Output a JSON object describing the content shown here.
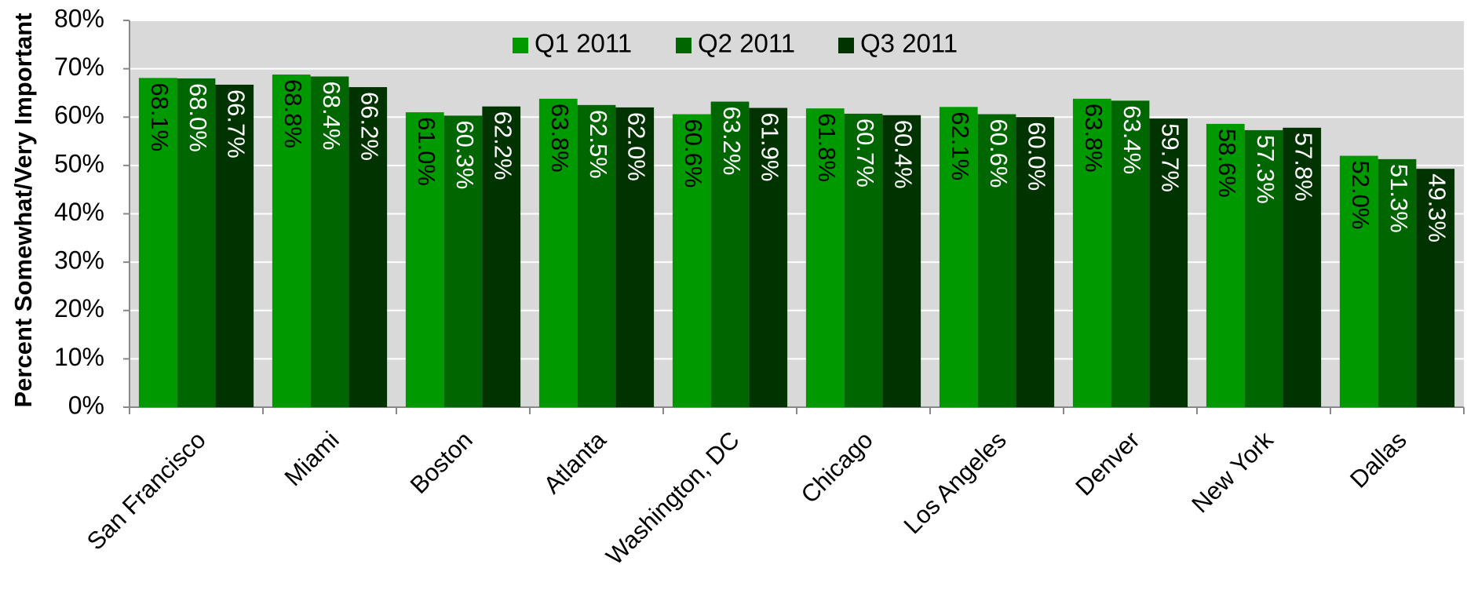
{
  "chart_data": {
    "type": "bar",
    "y_label": "Percent Somewhat/Very Important",
    "categories": [
      "San Francisco",
      "Miami",
      "Boston",
      "Atlanta",
      "Washington, DC",
      "Chicago",
      "Los Angeles",
      "Denver",
      "New York",
      "Dallas"
    ],
    "series": [
      {
        "name": "Q1 2011",
        "color": "#009900",
        "label_color": "#000000",
        "values": [
          68.1,
          68.8,
          61.0,
          63.8,
          60.6,
          61.8,
          62.1,
          63.8,
          58.6,
          52.0
        ],
        "value_labels": [
          "68.1%",
          "68.8%",
          "61.0%",
          "63.8%",
          "60.6%",
          "61.8%",
          "62.1%",
          "63.8%",
          "58.6%",
          "52.0%"
        ]
      },
      {
        "name": "Q2 2011",
        "color": "#006600",
        "label_color": "#ffffff",
        "values": [
          68.0,
          68.4,
          60.3,
          62.5,
          63.2,
          60.7,
          60.6,
          63.4,
          57.3,
          51.3
        ],
        "value_labels": [
          "68.0%",
          "68.4%",
          "60.3%",
          "62.5%",
          "63.2%",
          "60.7%",
          "60.6%",
          "63.4%",
          "57.3%",
          "51.3%"
        ]
      },
      {
        "name": "Q3 2011",
        "color": "#003300",
        "label_color": "#ffffff",
        "values": [
          66.7,
          66.2,
          62.2,
          62.0,
          61.9,
          60.4,
          60.0,
          59.7,
          57.8,
          49.3
        ],
        "value_labels": [
          "66.7%",
          "66.2%",
          "62.2%",
          "62.0%",
          "61.9%",
          "60.4%",
          "60.0%",
          "59.7%",
          "57.8%",
          "49.3%"
        ]
      }
    ],
    "ylim": [
      0,
      80
    ],
    "yticks": [
      {
        "value": 0,
        "label": "0%"
      },
      {
        "value": 10,
        "label": "10%"
      },
      {
        "value": 20,
        "label": "20%"
      },
      {
        "value": 30,
        "label": "30%"
      },
      {
        "value": 40,
        "label": "40%"
      },
      {
        "value": 50,
        "label": "50%"
      },
      {
        "value": 60,
        "label": "60%"
      },
      {
        "value": 70,
        "label": "70%"
      },
      {
        "value": 80,
        "label": "80%"
      }
    ],
    "grid": true,
    "legend": "top",
    "plot_background": "#d9d9d9"
  }
}
